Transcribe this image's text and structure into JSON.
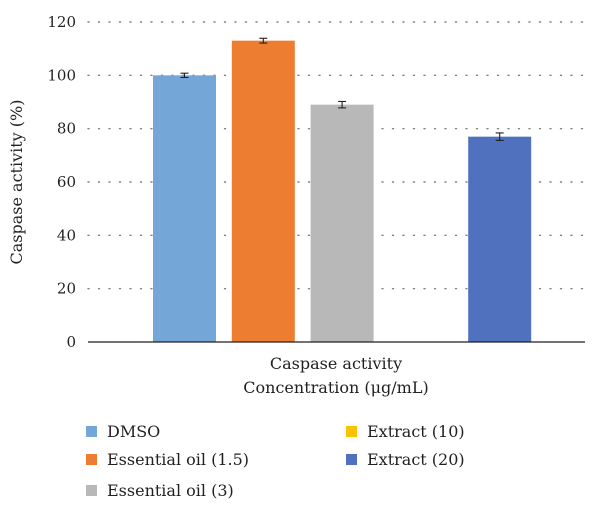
{
  "chart_data": {
    "type": "bar",
    "ylabel": "Caspase activity (%)",
    "category_label": "Caspase activity",
    "xlabel": "Concentration (μg/mL)",
    "ylim": [
      0,
      120
    ],
    "yticks": [
      0,
      20,
      40,
      60,
      80,
      100,
      120
    ],
    "grid": "horizontal dotted",
    "legend_position": "bottom",
    "series": [
      {
        "name": "DMSO",
        "value": 100,
        "error": 0.8,
        "color": "#74a6d8"
      },
      {
        "name": "Essential oil (1.5)",
        "value": 113,
        "error": 0.9,
        "color": "#ed7d31"
      },
      {
        "name": "Essential oil (3)",
        "value": 89,
        "error": 1.2,
        "color": "#b8b8b8"
      },
      {
        "name": "Extract (10)",
        "value": 0,
        "error": 0,
        "color": "#ffc000"
      },
      {
        "name": "Extract (20)",
        "value": 77,
        "error": 1.4,
        "color": "#4f71be"
      }
    ]
  }
}
